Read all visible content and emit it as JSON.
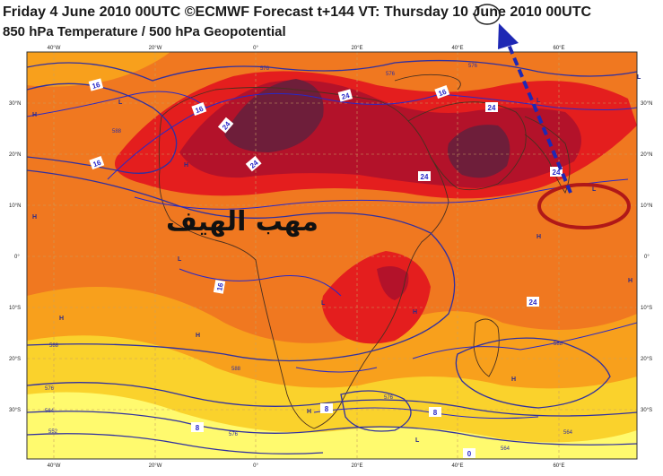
{
  "header": {
    "line1": "Friday 4 June 2010 00UTC ©ECMWF Forecast t+144 VT: Thursday 10 June 2010 00UTC",
    "line2": "850 hPa Temperature / 500 hPa Geopotential"
  },
  "overlay": {
    "arabic_label": "مهب الهيف",
    "circled_day": "10"
  },
  "axes": {
    "lon_ticks": [
      "40°W",
      "20°W",
      "0°",
      "20°E",
      "40°E",
      "60°E"
    ],
    "lat_ticks": [
      "30°N",
      "20°N",
      "10°N",
      "0°",
      "10°S",
      "20°S",
      "30°S"
    ]
  },
  "contour_labels": {
    "temperature": [
      "16",
      "16",
      "16",
      "16",
      "16",
      "24",
      "24",
      "24",
      "24",
      "24",
      "24",
      "24",
      "8",
      "8",
      "8",
      "0"
    ],
    "geopotential": [
      "576",
      "576",
      "576",
      "588",
      "588",
      "588",
      "588",
      "576",
      "576",
      "564",
      "564",
      "552",
      "564",
      "576"
    ]
  },
  "pressure_centers": [
    "H",
    "L",
    "H",
    "H",
    "L",
    "H",
    "L",
    "H",
    "H",
    "H",
    "H",
    "L",
    "H",
    "H",
    "L",
    "L",
    "L"
  ],
  "colors": {
    "hot": "#e41e1e",
    "very_hot": "#b3122a",
    "extreme": "#6e1e3a",
    "warm": "#f07820",
    "mild": "#f8a01c",
    "cool": "#fad22c",
    "cold": "#fffa6e",
    "contour": "#3030a0",
    "annotation": "#b01818",
    "arrow": "#1e28b4"
  }
}
